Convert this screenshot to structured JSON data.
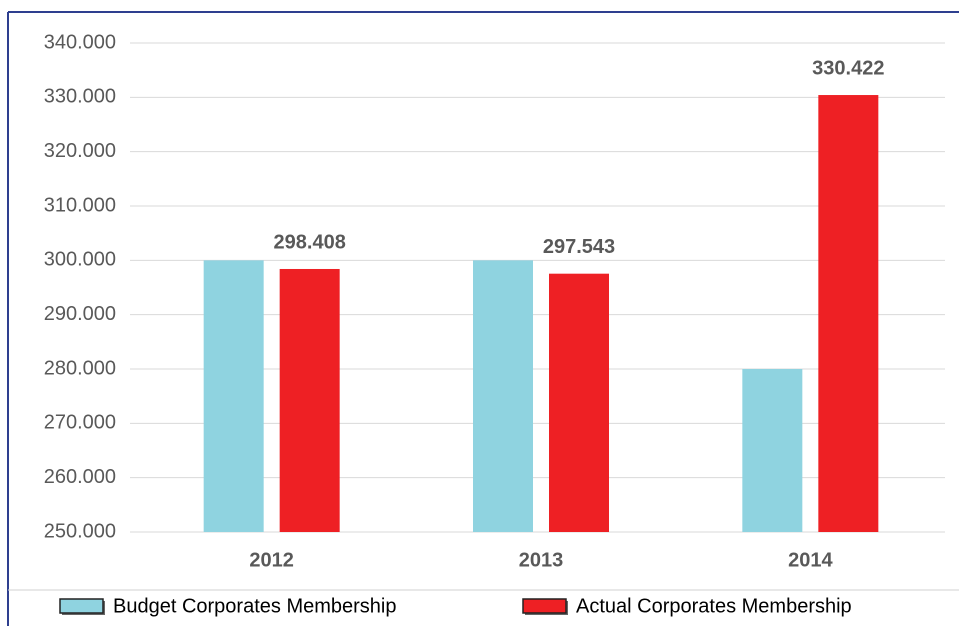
{
  "chart_data": {
    "type": "bar",
    "categories": [
      "2012",
      "2013",
      "2014"
    ],
    "series": [
      {
        "name": "Budget Corporates Membership",
        "color": "#8fd3e0",
        "values": [
          300000,
          300000,
          280000
        ]
      },
      {
        "name": "Actual Corporates Membership",
        "color": "#ee2024",
        "values": [
          298408,
          297543,
          330422
        ],
        "value_labels": [
          "298.408",
          "297.543",
          "330.422"
        ]
      }
    ],
    "ylim": [
      250000,
      340000
    ],
    "yticks": [
      {
        "value": 250000,
        "label": "250.000"
      },
      {
        "value": 260000,
        "label": "260.000"
      },
      {
        "value": 270000,
        "label": "270.000"
      },
      {
        "value": 280000,
        "label": "280.000"
      },
      {
        "value": 290000,
        "label": "290.000"
      },
      {
        "value": 300000,
        "label": "300.000"
      },
      {
        "value": 310000,
        "label": "310.000"
      },
      {
        "value": 320000,
        "label": "320.000"
      },
      {
        "value": 330000,
        "label": "330.000"
      },
      {
        "value": 340000,
        "label": "340.000"
      }
    ],
    "grid": true,
    "legend": "bottom"
  }
}
